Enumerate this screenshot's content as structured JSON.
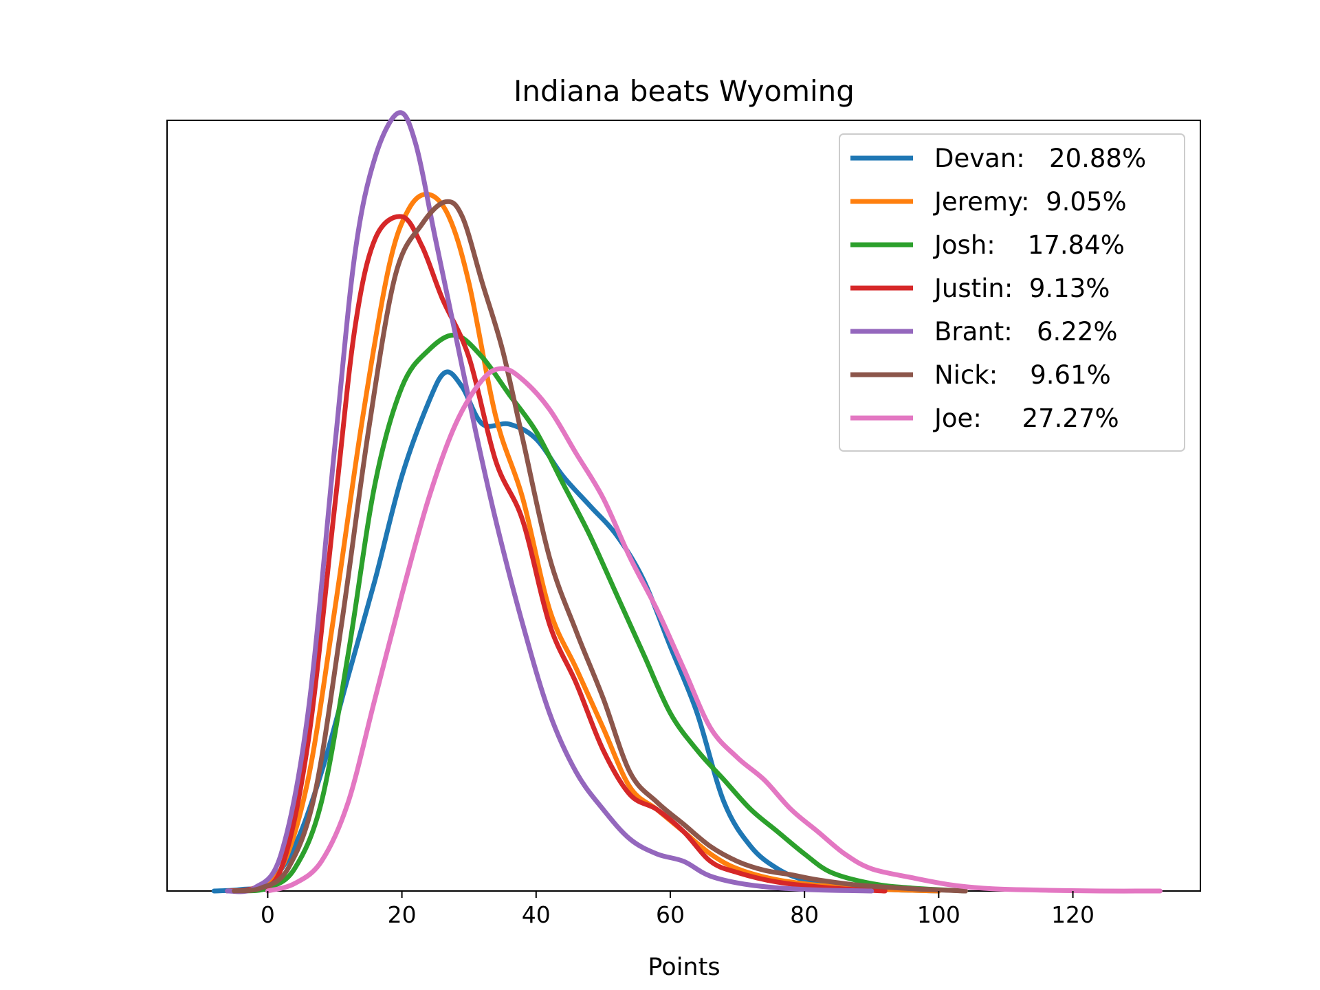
{
  "chart_data": {
    "type": "line",
    "title": "Indiana beats Wyoming",
    "xlabel": "Points",
    "ylabel": "",
    "xlim": [
      -15,
      139
    ],
    "ylim": [
      0,
      1.04
    ],
    "xticks": [
      0,
      20,
      40,
      60,
      80,
      100,
      120
    ],
    "xtick_labels": [
      "0",
      "20",
      "40",
      "60",
      "80",
      "100",
      "120"
    ],
    "y_tick_labels_shown": false,
    "grid": false,
    "legend_position": "top-right",
    "series": [
      {
        "name": "Devan:   20.88%",
        "color": "#1f77b4",
        "points": [
          [
            -8,
            0
          ],
          [
            -4,
            0.002
          ],
          [
            0,
            0.01
          ],
          [
            4,
            0.06
          ],
          [
            8,
            0.16
          ],
          [
            12,
            0.29
          ],
          [
            16,
            0.42
          ],
          [
            20,
            0.56
          ],
          [
            24,
            0.66
          ],
          [
            26.5,
            0.7
          ],
          [
            29,
            0.68
          ],
          [
            32,
            0.63
          ],
          [
            36,
            0.63
          ],
          [
            40,
            0.61
          ],
          [
            44,
            0.56
          ],
          [
            48,
            0.52
          ],
          [
            52,
            0.48
          ],
          [
            56,
            0.42
          ],
          [
            60,
            0.33
          ],
          [
            64,
            0.24
          ],
          [
            68,
            0.12
          ],
          [
            72,
            0.06
          ],
          [
            76,
            0.03
          ],
          [
            80,
            0.015
          ],
          [
            86,
            0.006
          ],
          [
            92,
            0.002
          ],
          [
            100,
            0
          ]
        ]
      },
      {
        "name": "Jeremy:  9.05%",
        "color": "#ff7f0e",
        "points": [
          [
            -6,
            0
          ],
          [
            -2,
            0.004
          ],
          [
            2,
            0.03
          ],
          [
            6,
            0.15
          ],
          [
            10,
            0.38
          ],
          [
            14,
            0.63
          ],
          [
            18,
            0.84
          ],
          [
            21,
            0.92
          ],
          [
            24,
            0.94
          ],
          [
            27,
            0.91
          ],
          [
            30,
            0.82
          ],
          [
            34,
            0.64
          ],
          [
            38,
            0.53
          ],
          [
            42,
            0.38
          ],
          [
            46,
            0.3
          ],
          [
            50,
            0.22
          ],
          [
            54,
            0.14
          ],
          [
            58,
            0.11
          ],
          [
            62,
            0.08
          ],
          [
            66,
            0.05
          ],
          [
            70,
            0.03
          ],
          [
            76,
            0.015
          ],
          [
            84,
            0.006
          ],
          [
            92,
            0.002
          ],
          [
            100,
            0
          ]
        ]
      },
      {
        "name": "Josh:    17.84%",
        "color": "#2ca02c",
        "points": [
          [
            -4,
            0
          ],
          [
            0,
            0.004
          ],
          [
            4,
            0.03
          ],
          [
            8,
            0.12
          ],
          [
            12,
            0.32
          ],
          [
            16,
            0.55
          ],
          [
            20,
            0.68
          ],
          [
            24,
            0.73
          ],
          [
            28,
            0.75
          ],
          [
            32,
            0.72
          ],
          [
            36,
            0.67
          ],
          [
            40,
            0.62
          ],
          [
            44,
            0.55
          ],
          [
            48,
            0.48
          ],
          [
            52,
            0.4
          ],
          [
            56,
            0.32
          ],
          [
            60,
            0.24
          ],
          [
            64,
            0.19
          ],
          [
            68,
            0.15
          ],
          [
            72,
            0.11
          ],
          [
            76,
            0.08
          ],
          [
            80,
            0.05
          ],
          [
            84,
            0.025
          ],
          [
            90,
            0.01
          ],
          [
            96,
            0.004
          ],
          [
            104,
            0
          ]
        ]
      },
      {
        "name": "Justin:  9.13%",
        "color": "#d62728",
        "points": [
          [
            -6,
            0
          ],
          [
            -2,
            0.004
          ],
          [
            2,
            0.03
          ],
          [
            6,
            0.2
          ],
          [
            10,
            0.52
          ],
          [
            13,
            0.76
          ],
          [
            16,
            0.88
          ],
          [
            20,
            0.91
          ],
          [
            23,
            0.87
          ],
          [
            26,
            0.8
          ],
          [
            30,
            0.72
          ],
          [
            34,
            0.58
          ],
          [
            38,
            0.5
          ],
          [
            42,
            0.36
          ],
          [
            46,
            0.28
          ],
          [
            50,
            0.19
          ],
          [
            54,
            0.13
          ],
          [
            58,
            0.11
          ],
          [
            62,
            0.08
          ],
          [
            66,
            0.04
          ],
          [
            70,
            0.025
          ],
          [
            76,
            0.012
          ],
          [
            84,
            0.004
          ],
          [
            92,
            0
          ]
        ]
      },
      {
        "name": "Brant:   6.22%",
        "color": "#9467bd",
        "points": [
          [
            -6,
            0
          ],
          [
            -2,
            0.004
          ],
          [
            2,
            0.05
          ],
          [
            6,
            0.24
          ],
          [
            10,
            0.6
          ],
          [
            13,
            0.86
          ],
          [
            16,
            0.99
          ],
          [
            19.5,
            1.05
          ],
          [
            22,
            1.01
          ],
          [
            25,
            0.88
          ],
          [
            28,
            0.75
          ],
          [
            31,
            0.62
          ],
          [
            34,
            0.5
          ],
          [
            38,
            0.36
          ],
          [
            42,
            0.24
          ],
          [
            46,
            0.16
          ],
          [
            50,
            0.11
          ],
          [
            54,
            0.07
          ],
          [
            58,
            0.05
          ],
          [
            62,
            0.04
          ],
          [
            66,
            0.02
          ],
          [
            72,
            0.008
          ],
          [
            80,
            0.002
          ],
          [
            90,
            0
          ]
        ]
      },
      {
        "name": "Nick:    9.61%",
        "color": "#8c564b",
        "points": [
          [
            -5,
            0
          ],
          [
            -1,
            0.004
          ],
          [
            3,
            0.03
          ],
          [
            7,
            0.13
          ],
          [
            11,
            0.36
          ],
          [
            15,
            0.62
          ],
          [
            19,
            0.83
          ],
          [
            23,
            0.9
          ],
          [
            26.5,
            0.93
          ],
          [
            29,
            0.91
          ],
          [
            32,
            0.82
          ],
          [
            35,
            0.73
          ],
          [
            38,
            0.61
          ],
          [
            42,
            0.45
          ],
          [
            46,
            0.35
          ],
          [
            50,
            0.26
          ],
          [
            54,
            0.16
          ],
          [
            58,
            0.12
          ],
          [
            62,
            0.09
          ],
          [
            66,
            0.06
          ],
          [
            70,
            0.04
          ],
          [
            74,
            0.028
          ],
          [
            78,
            0.022
          ],
          [
            82,
            0.015
          ],
          [
            88,
            0.008
          ],
          [
            96,
            0.003
          ],
          [
            104,
            0
          ]
        ]
      },
      {
        "name": "Joe:     27.27%",
        "color": "#e377c2",
        "points": [
          [
            0,
            0
          ],
          [
            4,
            0.01
          ],
          [
            8,
            0.04
          ],
          [
            12,
            0.12
          ],
          [
            16,
            0.26
          ],
          [
            20,
            0.4
          ],
          [
            24,
            0.53
          ],
          [
            28,
            0.63
          ],
          [
            32,
            0.69
          ],
          [
            35,
            0.705
          ],
          [
            38,
            0.69
          ],
          [
            42,
            0.65
          ],
          [
            46,
            0.59
          ],
          [
            50,
            0.53
          ],
          [
            54,
            0.45
          ],
          [
            58,
            0.38
          ],
          [
            62,
            0.3
          ],
          [
            66,
            0.22
          ],
          [
            70,
            0.18
          ],
          [
            74,
            0.15
          ],
          [
            78,
            0.11
          ],
          [
            82,
            0.08
          ],
          [
            86,
            0.05
          ],
          [
            90,
            0.03
          ],
          [
            96,
            0.018
          ],
          [
            102,
            0.008
          ],
          [
            108,
            0.003
          ],
          [
            116,
            0.001
          ],
          [
            124,
            0
          ],
          [
            133,
            0
          ]
        ]
      }
    ]
  }
}
